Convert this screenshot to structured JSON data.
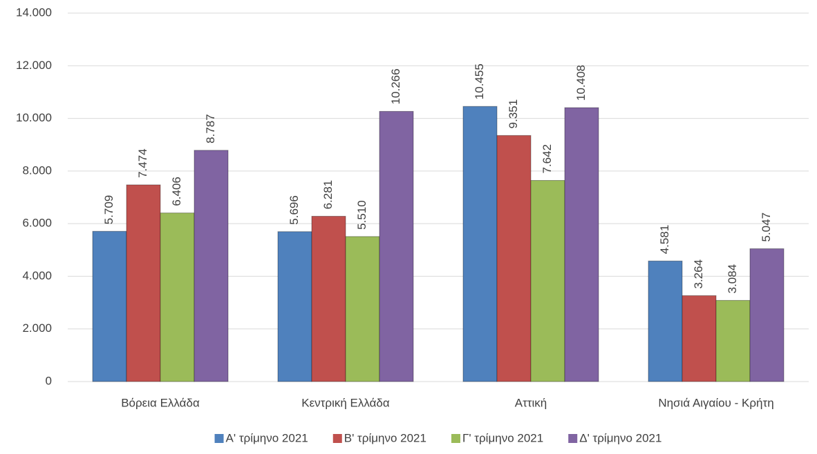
{
  "chart_data": {
    "type": "bar",
    "categories": [
      "Βόρεια Ελλάδα",
      "Κεντρική Ελλάδα",
      "Αττική",
      "Νησιά Αιγαίου - Κρήτη"
    ],
    "series": [
      {
        "name": "Α' τρίμηνο 2021",
        "color": "#4f81bd",
        "values": [
          5709,
          5696,
          10455,
          4581
        ],
        "value_labels": [
          "5.709",
          "5.696",
          "10.455",
          "4.581"
        ]
      },
      {
        "name": "Β' τρίμηνο 2021",
        "color": "#c0504d",
        "values": [
          7474,
          6281,
          9351,
          3264
        ],
        "value_labels": [
          "7.474",
          "6.281",
          "9.351",
          "3.264"
        ]
      },
      {
        "name": "Γ' τρίμηνο 2021",
        "color": "#9bbb59",
        "values": [
          6406,
          5510,
          7642,
          3084
        ],
        "value_labels": [
          "6.406",
          "5.510",
          "7.642",
          "3.084"
        ]
      },
      {
        "name": "Δ' τρίμηνο 2021",
        "color": "#8064a2",
        "values": [
          8787,
          10266,
          10408,
          5047
        ],
        "value_labels": [
          "8.787",
          "10.266",
          "10.408",
          "5.047"
        ]
      }
    ],
    "ylim": [
      0,
      14000
    ],
    "yticks": [
      0,
      {
        "value": 2000,
        "label": "2.000"
      },
      {
        "value": 4000,
        "label": "4.000"
      },
      {
        "value": 6000,
        "label": "6.000"
      },
      {
        "value": 8000,
        "label": "8.000"
      },
      {
        "value": 10000,
        "label": "10.000"
      },
      {
        "value": 12000,
        "label": "12.000"
      },
      {
        "value": 14000,
        "label": "14.000"
      }
    ],
    "grid": true,
    "legend": "bottom"
  }
}
